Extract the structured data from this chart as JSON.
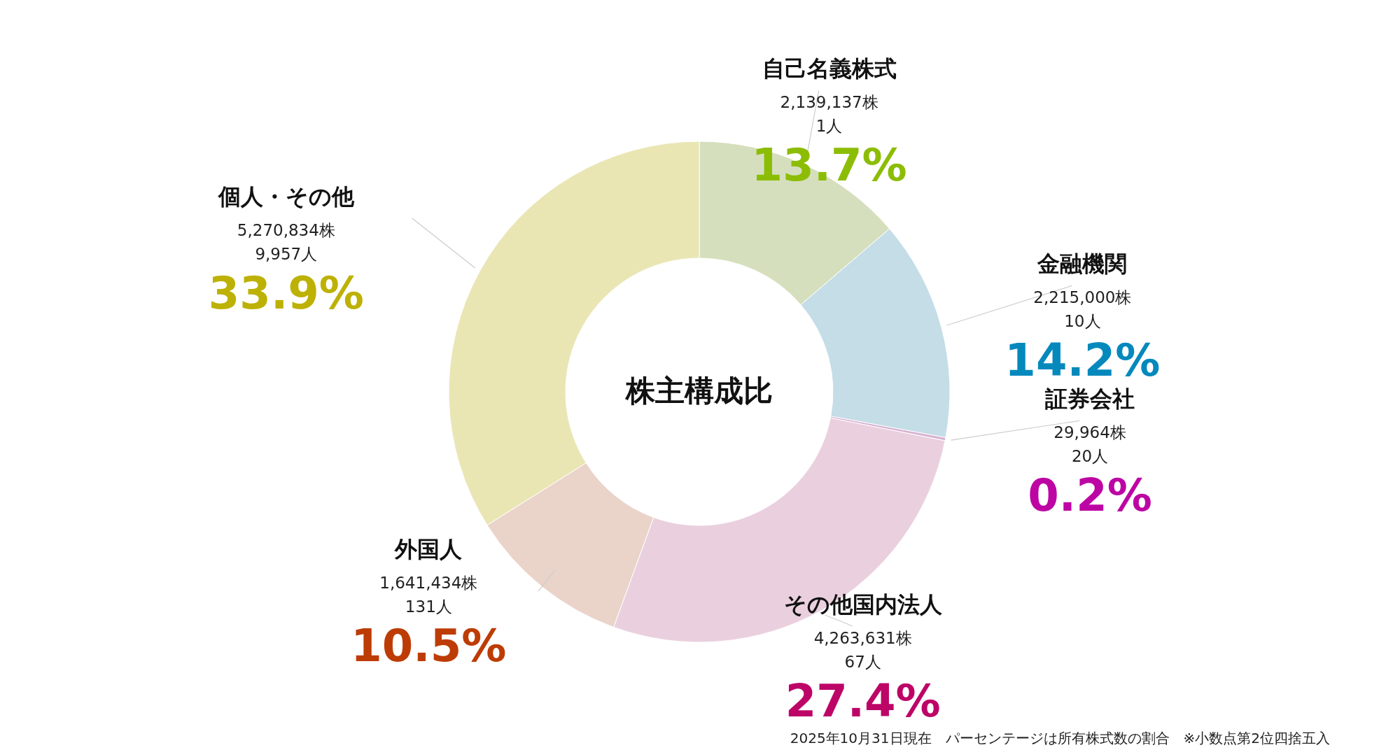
{
  "chart_data": {
    "type": "donut",
    "title": "株主構成比",
    "categories": [
      "自己名義株式",
      "金融機関",
      "証券会社",
      "その他国内法人",
      "外国人",
      "個人・その他"
    ],
    "values": [
      13.7,
      14.2,
      0.2,
      27.4,
      10.5,
      33.9
    ],
    "colors": [
      "#d6dfbd",
      "#c4dde7",
      "#d7b2d2",
      "#ead0de",
      "#ead3c9",
      "#eae6b4"
    ],
    "value_labels": [
      "13.7%",
      "14.2%",
      "0.2%",
      "27.4%",
      "10.5%",
      "33.9%"
    ],
    "annotations": [
      "2,139,137株",
      "1人",
      "2,215,000株",
      "10人",
      "29,964株",
      "20人",
      "4,263,631株",
      "67人",
      "1,641,434株",
      "131人",
      "5,270,834株",
      "9,957人",
      "2025年10月31日現在　パーセンテージは所有株式数の割合　※小数点第2位四捨五入"
    ]
  }
}
